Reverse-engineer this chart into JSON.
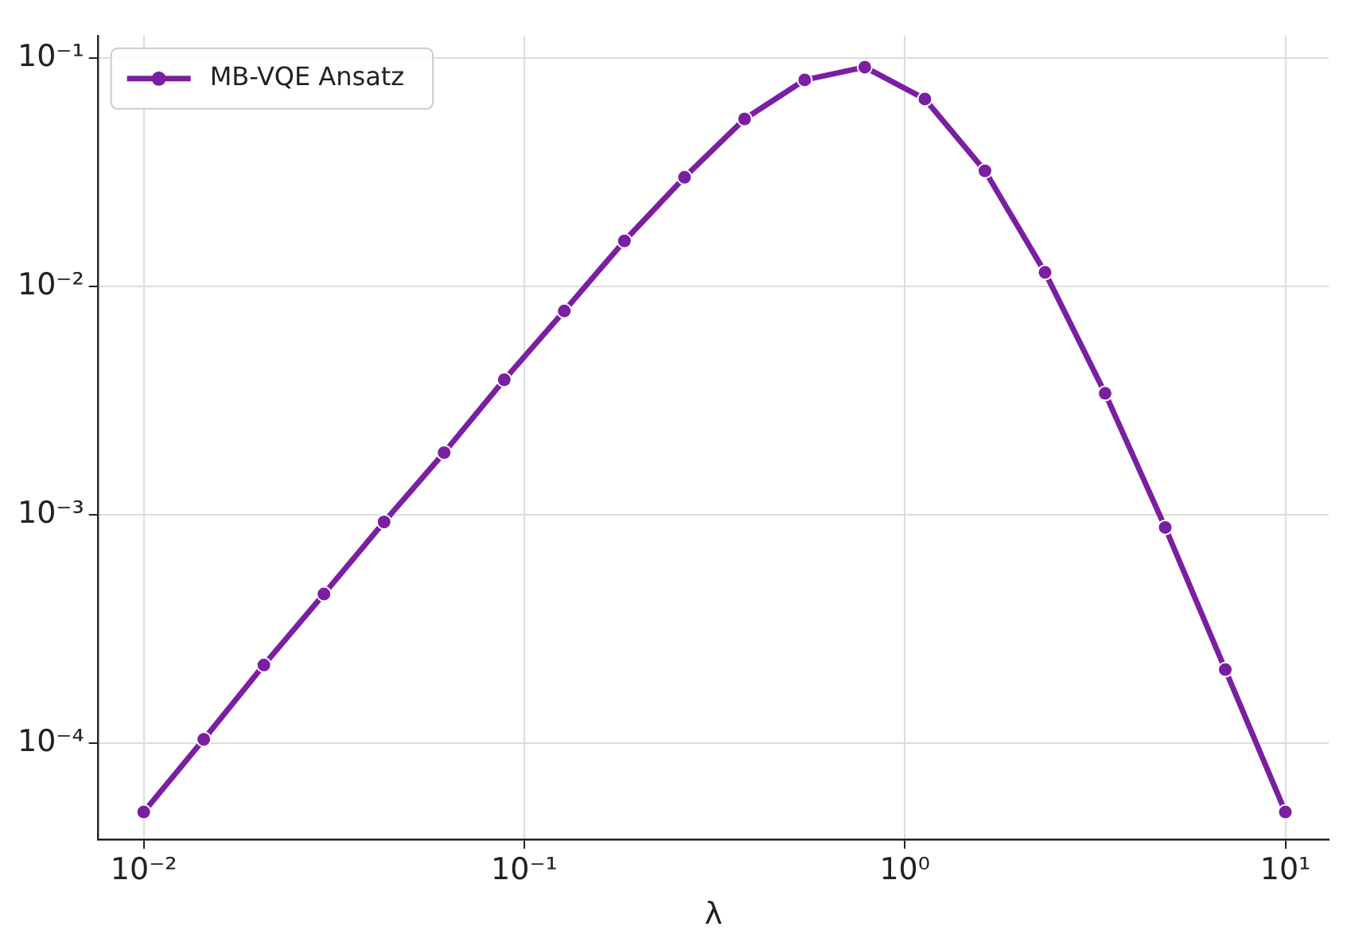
{
  "chart_data": {
    "type": "line",
    "xlabel": "λ",
    "log": "xy",
    "grid": true,
    "legend": "top left",
    "marker": "circle",
    "line_style": "solid",
    "x": [
      0.01,
      0.01438,
      0.02069,
      0.02976,
      0.04281,
      0.06158,
      0.08859,
      0.1274,
      0.1833,
      0.2637,
      0.3793,
      0.5456,
      0.7848,
      1.129,
      1.624,
      2.336,
      3.36,
      4.833,
      6.952,
      10
    ],
    "series": [
      {
        "name": "MB-VQE Ansatz",
        "color": "#7b1fa2",
        "values": [
          5e-05,
          0.000104,
          0.00022,
          0.00045,
          0.00093,
          0.00187,
          0.0039,
          0.0078,
          0.0158,
          0.03,
          0.054,
          0.08,
          0.091,
          0.066,
          0.032,
          0.0115,
          0.0034,
          0.00088,
          0.00021,
          5e-05
        ]
      }
    ],
    "xlim": [
      0.0076,
      13
    ],
    "ylim": [
      3.8e-05,
      0.125
    ],
    "xticks": [
      {
        "value": 0.01,
        "label": "10⁻²"
      },
      {
        "value": 0.1,
        "label": "10⁻¹"
      },
      {
        "value": 1,
        "label": "10⁰"
      },
      {
        "value": 10,
        "label": "10¹"
      }
    ],
    "yticks": [
      {
        "value": 0.0001,
        "label": "10⁻⁴"
      },
      {
        "value": 0.001,
        "label": "10⁻³"
      },
      {
        "value": 0.01,
        "label": "10⁻²"
      },
      {
        "value": 0.1,
        "label": "10⁻¹"
      }
    ]
  }
}
